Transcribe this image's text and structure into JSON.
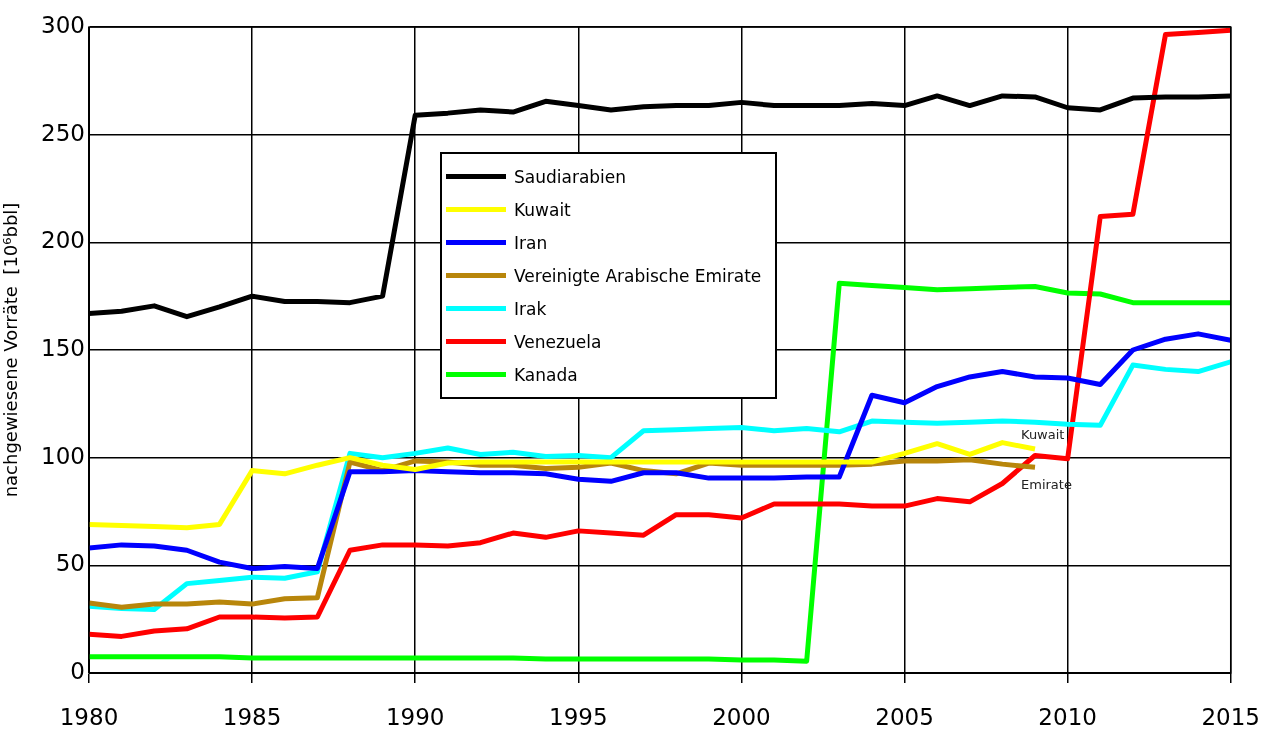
{
  "chart_data": {
    "type": "line",
    "ylabel": "nachgewiesene Vorräte  [10⁶bbl]",
    "x": [
      1980,
      1981,
      1982,
      1983,
      1984,
      1985,
      1986,
      1987,
      1988,
      1989,
      1990,
      1991,
      1992,
      1993,
      1994,
      1995,
      1996,
      1997,
      1998,
      1999,
      2000,
      2001,
      2002,
      2003,
      2004,
      2005,
      2006,
      2007,
      2008,
      2009,
      2010,
      2011,
      2012,
      2013,
      2014,
      2015
    ],
    "series": [
      {
        "name": "Saudiarabien",
        "color": "#000000",
        "values": [
          167,
          168,
          170.5,
          165.5,
          170,
          175,
          172.5,
          172.5,
          172,
          175,
          259,
          260,
          261.5,
          260.5,
          265.5,
          263.5,
          261.5,
          263,
          263.5,
          263.5,
          265,
          263.5,
          263.5,
          263.5,
          264.5,
          263.5,
          268,
          263.5,
          268,
          267.5,
          262.5,
          261.5,
          267,
          267.5,
          267.5,
          268
        ]
      },
      {
        "name": "Kuwait",
        "color": "#ffff00",
        "values": [
          69,
          68.5,
          68,
          67.5,
          69,
          94,
          92.5,
          96.5,
          100,
          96.5,
          94.5,
          97.5,
          98,
          98,
          98,
          98,
          98,
          98,
          98,
          98,
          98,
          98,
          98,
          98,
          98,
          102,
          106.5,
          101.5,
          107,
          104,
          null,
          null,
          null,
          null,
          null,
          null
        ]
      },
      {
        "name": "Iran",
        "color": "#0000ff",
        "values": [
          58,
          59.5,
          59,
          57,
          51.5,
          48.5,
          49.5,
          48.5,
          93.5,
          93.5,
          94,
          93.5,
          93,
          93,
          92.5,
          90,
          89,
          93,
          93,
          90.5,
          90.5,
          90.5,
          91,
          91,
          129,
          125.5,
          133,
          137.5,
          140,
          137.5,
          137,
          134,
          150,
          155,
          157.5,
          154.5
        ]
      },
      {
        "name": "Vereinigte Arabische Emirate",
        "color": "#b8860b",
        "values": [
          32.5,
          30.5,
          32,
          32,
          33,
          32,
          34.5,
          35,
          98,
          94,
          98.5,
          98,
          96.5,
          96.5,
          95,
          95.5,
          97.5,
          94,
          92.5,
          97.5,
          96.5,
          96.5,
          96.5,
          96.5,
          97,
          98.5,
          98.5,
          99,
          97,
          95.5,
          null,
          null,
          null,
          null,
          null,
          null
        ]
      },
      {
        "name": "Irak",
        "color": "#00ffff",
        "values": [
          31,
          30,
          29.5,
          41.5,
          43,
          44.5,
          44,
          47,
          102,
          100,
          102,
          104.5,
          101.5,
          102.5,
          100.5,
          101,
          100,
          112.5,
          113,
          113.5,
          114,
          112.5,
          113.5,
          112,
          117,
          116.5,
          116,
          116.5,
          117,
          116.5,
          115.5,
          115,
          143,
          141,
          140,
          144.5
        ]
      },
      {
        "name": "Venezuela",
        "color": "#ff0000",
        "values": [
          18,
          17,
          19.5,
          20.5,
          26,
          26,
          25.5,
          26,
          57,
          59.5,
          59.5,
          59,
          60.5,
          65,
          63,
          66,
          65,
          64,
          73.5,
          73.5,
          72,
          78.5,
          78.5,
          78.5,
          77.5,
          77.5,
          81,
          79.5,
          88,
          101,
          99.5,
          212,
          213,
          296.5,
          297.5,
          298.5
        ]
      },
      {
        "name": "Kanada",
        "color": "#00ff00",
        "values": [
          7.5,
          7.5,
          7.5,
          7.5,
          7.5,
          7,
          7,
          7,
          7,
          7,
          7,
          7,
          7,
          7,
          6.5,
          6.5,
          6.5,
          6.5,
          6.5,
          6.5,
          6,
          6,
          5.5,
          181,
          180,
          179,
          178,
          178.5,
          179,
          179.5,
          176.5,
          176,
          172,
          172,
          172,
          172
        ]
      }
    ],
    "xlim": [
      1980,
      2015
    ],
    "xticks": [
      1980,
      1985,
      1990,
      1995,
      2000,
      2005,
      2010,
      2015
    ],
    "ylim": [
      0,
      300
    ],
    "yticks": [
      0,
      50,
      100,
      150,
      200,
      250,
      300
    ],
    "grid": true,
    "legend": "top left",
    "marker": "none",
    "line_style": "solid",
    "annotations": [
      {
        "text": "Kuwait",
        "x": 2009,
        "y": 104
      },
      {
        "text": "Emirate",
        "x": 2009,
        "y": 95.5
      }
    ]
  }
}
